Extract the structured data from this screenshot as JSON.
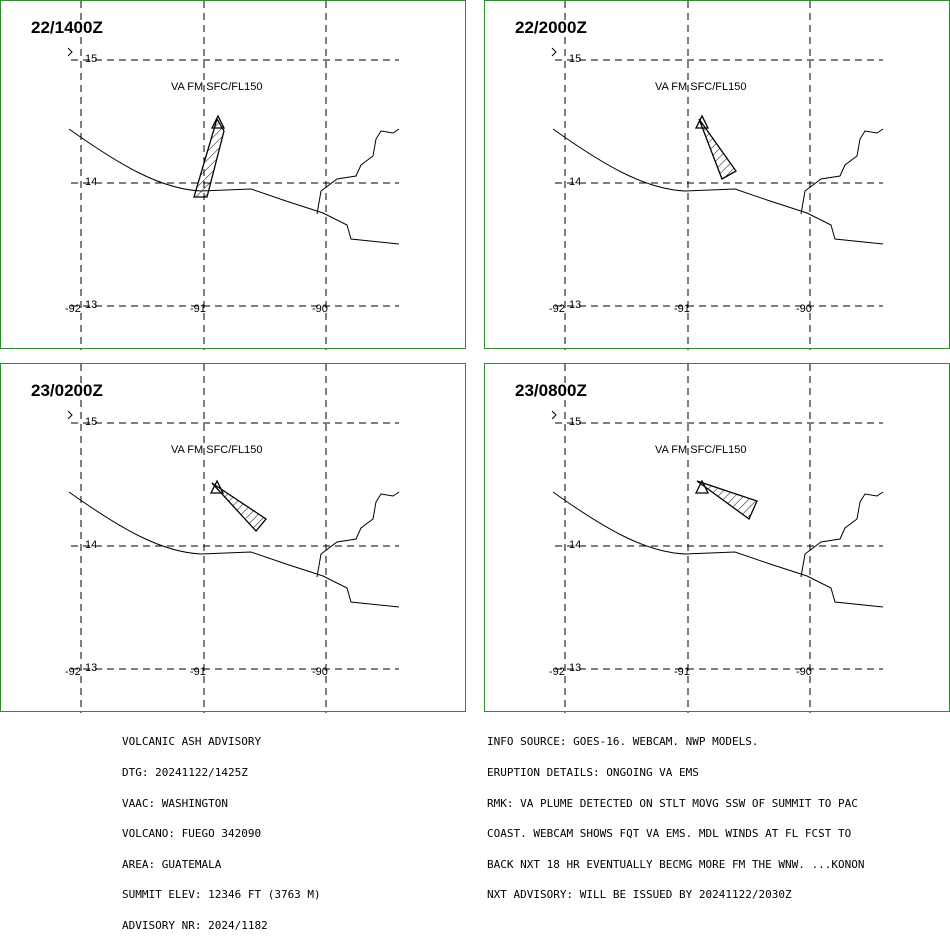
{
  "panels": [
    {
      "time": "22/1400Z",
      "va_label": "VA FM SFC/FL150"
    },
    {
      "time": "22/2000Z",
      "va_label": "VA FM SFC/FL150"
    },
    {
      "time": "23/0200Z",
      "va_label": "VA FM SFC/FL150"
    },
    {
      "time": "23/0800Z",
      "va_label": "VA FM SFC/FL150"
    }
  ],
  "grid_labels": {
    "lat_15": "15",
    "lat_14": "14",
    "lat_13": "13",
    "lon_92": "-92",
    "lon_91": "-91",
    "lon_90": "-90"
  },
  "advisory_left": [
    "VOLCANIC ASH ADVISORY",
    "DTG: 20241122/1425Z",
    "VAAC: WASHINGTON",
    "VOLCANO: FUEGO 342090",
    "AREA: GUATEMALA",
    "SUMMIT ELEV: 12346 FT (3763 M)",
    "ADVISORY NR: 2024/1182"
  ],
  "advisory_right": [
    "INFO SOURCE: GOES-16. WEBCAM. NWP MODELS.",
    "ERUPTION DETAILS: ONGOING VA EMS",
    "RMK: VA PLUME DETECTED ON STLT MOVG SSW OF SUMMIT TO PAC",
    "COAST. WEBCAM SHOWS FQT VA EMS. MDL WINDS AT FL FCST TO",
    "BACK NXT 18 HR EVENTUALLY BECMG MORE FM THE WNW. ...KONON",
    "NXT ADVISORY: WILL BE ISSUED BY 20241122/2030Z"
  ],
  "colors": {
    "panel_border": "#2e8b2e",
    "lines": "#000000"
  }
}
